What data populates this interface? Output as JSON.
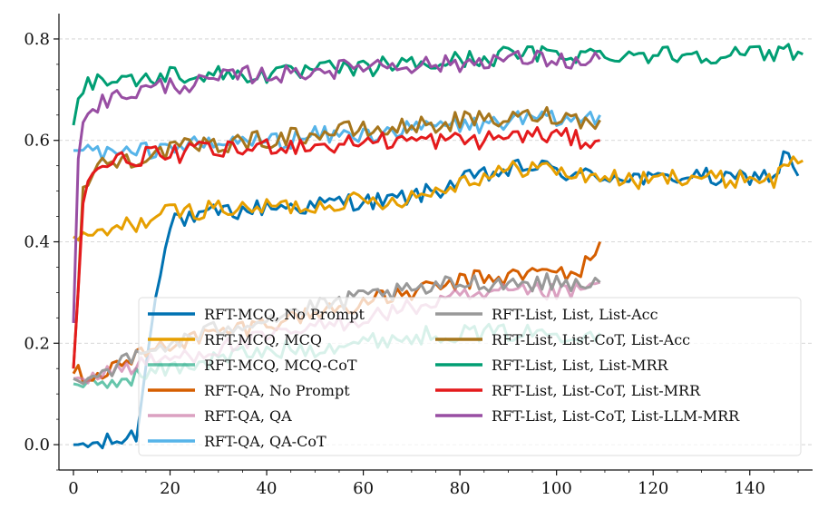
{
  "chart_data": {
    "type": "line",
    "title": "",
    "xlabel": "",
    "ylabel": "",
    "xlim": [
      -3,
      153
    ],
    "ylim": [
      -0.05,
      0.85
    ],
    "xticks": [
      0,
      20,
      40,
      60,
      80,
      100,
      120,
      140
    ],
    "yticks": [
      0.0,
      0.2,
      0.4,
      0.6,
      0.8
    ],
    "xtick_labels": [
      "0",
      "20",
      "40",
      "60",
      "80",
      "100",
      "120",
      "140"
    ],
    "ytick_labels": [
      "0.0",
      "0.2",
      "0.4",
      "0.6",
      "0.8"
    ],
    "grid": "horizontal dashed",
    "legend_position": "bottom-center",
    "series": [
      {
        "name": "RFT-MCQ, No Prompt",
        "color": "#0072B2",
        "opacity": 1.0,
        "points": [
          [
            0,
            0.0
          ],
          [
            5,
            0.0
          ],
          [
            10,
            0.01
          ],
          [
            13,
            0.02
          ],
          [
            15,
            0.15
          ],
          [
            17,
            0.3
          ],
          [
            19,
            0.4
          ],
          [
            21,
            0.45
          ],
          [
            25,
            0.44
          ],
          [
            30,
            0.46
          ],
          [
            35,
            0.46
          ],
          [
            40,
            0.47
          ],
          [
            45,
            0.47
          ],
          [
            50,
            0.47
          ],
          [
            55,
            0.48
          ],
          [
            60,
            0.48
          ],
          [
            65,
            0.48
          ],
          [
            70,
            0.49
          ],
          [
            75,
            0.5
          ],
          [
            80,
            0.52
          ],
          [
            85,
            0.53
          ],
          [
            90,
            0.54
          ],
          [
            95,
            0.55
          ],
          [
            100,
            0.54
          ],
          [
            105,
            0.53
          ],
          [
            110,
            0.53
          ],
          [
            115,
            0.53
          ],
          [
            120,
            0.52
          ],
          [
            125,
            0.53
          ],
          [
            130,
            0.53
          ],
          [
            135,
            0.52
          ],
          [
            140,
            0.53
          ],
          [
            145,
            0.53
          ],
          [
            148,
            0.58
          ],
          [
            150,
            0.53
          ]
        ]
      },
      {
        "name": "RFT-MCQ, MCQ",
        "color": "#E69F00",
        "opacity": 1.0,
        "points": [
          [
            0,
            0.41
          ],
          [
            5,
            0.41
          ],
          [
            10,
            0.43
          ],
          [
            15,
            0.44
          ],
          [
            20,
            0.46
          ],
          [
            25,
            0.46
          ],
          [
            30,
            0.47
          ],
          [
            35,
            0.46
          ],
          [
            40,
            0.47
          ],
          [
            45,
            0.47
          ],
          [
            50,
            0.47
          ],
          [
            55,
            0.48
          ],
          [
            60,
            0.48
          ],
          [
            65,
            0.48
          ],
          [
            70,
            0.49
          ],
          [
            75,
            0.5
          ],
          [
            80,
            0.52
          ],
          [
            85,
            0.53
          ],
          [
            90,
            0.54
          ],
          [
            95,
            0.55
          ],
          [
            100,
            0.54
          ],
          [
            105,
            0.53
          ],
          [
            110,
            0.53
          ],
          [
            115,
            0.52
          ],
          [
            120,
            0.52
          ],
          [
            125,
            0.53
          ],
          [
            130,
            0.53
          ],
          [
            135,
            0.52
          ],
          [
            140,
            0.53
          ],
          [
            145,
            0.52
          ],
          [
            148,
            0.56
          ],
          [
            151,
            0.56
          ]
        ]
      },
      {
        "name": "RFT-MCQ, MCQ-CoT",
        "color": "#009E73",
        "opacity": 0.6,
        "points": [
          [
            0,
            0.12
          ],
          [
            5,
            0.11
          ],
          [
            10,
            0.13
          ],
          [
            15,
            0.14
          ],
          [
            20,
            0.15
          ],
          [
            25,
            0.16
          ],
          [
            30,
            0.17
          ],
          [
            35,
            0.18
          ],
          [
            40,
            0.18
          ],
          [
            45,
            0.19
          ],
          [
            50,
            0.19
          ],
          [
            55,
            0.2
          ],
          [
            60,
            0.2
          ],
          [
            65,
            0.21
          ],
          [
            70,
            0.21
          ],
          [
            75,
            0.22
          ],
          [
            80,
            0.22
          ],
          [
            85,
            0.22
          ],
          [
            90,
            0.22
          ],
          [
            95,
            0.22
          ],
          [
            100,
            0.22
          ],
          [
            105,
            0.22
          ],
          [
            109,
            0.22
          ]
        ]
      },
      {
        "name": "RFT-QA, No Prompt",
        "color": "#D55E00",
        "opacity": 1.0,
        "points": [
          [
            0,
            0.14
          ],
          [
            5,
            0.14
          ],
          [
            10,
            0.16
          ],
          [
            15,
            0.18
          ],
          [
            20,
            0.2
          ],
          [
            25,
            0.21
          ],
          [
            30,
            0.22
          ],
          [
            35,
            0.23
          ],
          [
            40,
            0.24
          ],
          [
            45,
            0.25
          ],
          [
            50,
            0.26
          ],
          [
            55,
            0.27
          ],
          [
            60,
            0.28
          ],
          [
            65,
            0.29
          ],
          [
            70,
            0.3
          ],
          [
            75,
            0.31
          ],
          [
            80,
            0.32
          ],
          [
            85,
            0.33
          ],
          [
            90,
            0.33
          ],
          [
            95,
            0.34
          ],
          [
            100,
            0.34
          ],
          [
            105,
            0.34
          ],
          [
            109,
            0.4
          ]
        ]
      },
      {
        "name": "RFT-QA, QA",
        "color": "#CC79A7",
        "opacity": 0.7,
        "points": [
          [
            0,
            0.13
          ],
          [
            5,
            0.14
          ],
          [
            10,
            0.15
          ],
          [
            15,
            0.16
          ],
          [
            20,
            0.17
          ],
          [
            25,
            0.18
          ],
          [
            30,
            0.19
          ],
          [
            35,
            0.2
          ],
          [
            40,
            0.21
          ],
          [
            45,
            0.22
          ],
          [
            50,
            0.23
          ],
          [
            55,
            0.24
          ],
          [
            60,
            0.25
          ],
          [
            65,
            0.26
          ],
          [
            70,
            0.27
          ],
          [
            75,
            0.28
          ],
          [
            80,
            0.29
          ],
          [
            85,
            0.29
          ],
          [
            90,
            0.3
          ],
          [
            95,
            0.3
          ],
          [
            100,
            0.3
          ],
          [
            105,
            0.3
          ],
          [
            109,
            0.32
          ]
        ]
      },
      {
        "name": "RFT-QA, QA-CoT",
        "color": "#56B4E9",
        "opacity": 1.0,
        "points": [
          [
            0,
            0.58
          ],
          [
            5,
            0.58
          ],
          [
            10,
            0.57
          ],
          [
            15,
            0.58
          ],
          [
            20,
            0.59
          ],
          [
            25,
            0.59
          ],
          [
            30,
            0.59
          ],
          [
            35,
            0.6
          ],
          [
            40,
            0.6
          ],
          [
            45,
            0.6
          ],
          [
            50,
            0.61
          ],
          [
            55,
            0.61
          ],
          [
            60,
            0.61
          ],
          [
            65,
            0.62
          ],
          [
            70,
            0.62
          ],
          [
            75,
            0.63
          ],
          [
            80,
            0.63
          ],
          [
            85,
            0.63
          ],
          [
            90,
            0.64
          ],
          [
            95,
            0.64
          ],
          [
            100,
            0.64
          ],
          [
            105,
            0.64
          ],
          [
            109,
            0.65
          ]
        ]
      },
      {
        "name": "RFT-List, List, List-Acc",
        "color": "#999999",
        "opacity": 1.0,
        "points": [
          [
            0,
            0.13
          ],
          [
            5,
            0.14
          ],
          [
            10,
            0.16
          ],
          [
            15,
            0.18
          ],
          [
            20,
            0.2
          ],
          [
            25,
            0.21
          ],
          [
            30,
            0.23
          ],
          [
            35,
            0.24
          ],
          [
            40,
            0.25
          ],
          [
            45,
            0.26
          ],
          [
            50,
            0.27
          ],
          [
            55,
            0.28
          ],
          [
            60,
            0.29
          ],
          [
            65,
            0.3
          ],
          [
            70,
            0.3
          ],
          [
            75,
            0.31
          ],
          [
            80,
            0.32
          ],
          [
            85,
            0.32
          ],
          [
            90,
            0.32
          ],
          [
            95,
            0.32
          ],
          [
            100,
            0.32
          ],
          [
            105,
            0.32
          ],
          [
            109,
            0.32
          ]
        ]
      },
      {
        "name": "RFT-List, List-CoT, List-Acc",
        "color": "#A6761D",
        "opacity": 1.0,
        "points": [
          [
            0,
            0.15
          ],
          [
            2,
            0.5
          ],
          [
            5,
            0.55
          ],
          [
            10,
            0.56
          ],
          [
            15,
            0.57
          ],
          [
            20,
            0.58
          ],
          [
            25,
            0.59
          ],
          [
            30,
            0.59
          ],
          [
            35,
            0.6
          ],
          [
            40,
            0.6
          ],
          [
            45,
            0.61
          ],
          [
            50,
            0.61
          ],
          [
            55,
            0.62
          ],
          [
            60,
            0.62
          ],
          [
            65,
            0.62
          ],
          [
            70,
            0.63
          ],
          [
            75,
            0.63
          ],
          [
            80,
            0.64
          ],
          [
            85,
            0.64
          ],
          [
            90,
            0.64
          ],
          [
            95,
            0.65
          ],
          [
            100,
            0.65
          ],
          [
            105,
            0.64
          ],
          [
            109,
            0.64
          ]
        ]
      },
      {
        "name": "RFT-List, List, List-MRR",
        "color": "#009E73",
        "opacity": 1.0,
        "points": [
          [
            0,
            0.63
          ],
          [
            1,
            0.7
          ],
          [
            3,
            0.71
          ],
          [
            5,
            0.72
          ],
          [
            10,
            0.72
          ],
          [
            15,
            0.72
          ],
          [
            20,
            0.73
          ],
          [
            25,
            0.73
          ],
          [
            30,
            0.73
          ],
          [
            35,
            0.73
          ],
          [
            40,
            0.73
          ],
          [
            45,
            0.73
          ],
          [
            50,
            0.74
          ],
          [
            55,
            0.74
          ],
          [
            60,
            0.74
          ],
          [
            65,
            0.75
          ],
          [
            70,
            0.75
          ],
          [
            75,
            0.75
          ],
          [
            80,
            0.76
          ],
          [
            85,
            0.76
          ],
          [
            90,
            0.77
          ],
          [
            95,
            0.77
          ],
          [
            100,
            0.77
          ],
          [
            105,
            0.77
          ],
          [
            110,
            0.77
          ],
          [
            115,
            0.77
          ],
          [
            120,
            0.77
          ],
          [
            125,
            0.77
          ],
          [
            130,
            0.77
          ],
          [
            135,
            0.77
          ],
          [
            140,
            0.77
          ],
          [
            145,
            0.77
          ],
          [
            148,
            0.78
          ],
          [
            151,
            0.77
          ]
        ]
      },
      {
        "name": "RFT-List, List-CoT, List-MRR",
        "color": "#E41A1C",
        "opacity": 1.0,
        "points": [
          [
            0,
            0.15
          ],
          [
            2,
            0.49
          ],
          [
            5,
            0.55
          ],
          [
            10,
            0.56
          ],
          [
            15,
            0.57
          ],
          [
            20,
            0.57
          ],
          [
            25,
            0.58
          ],
          [
            30,
            0.58
          ],
          [
            35,
            0.58
          ],
          [
            40,
            0.59
          ],
          [
            45,
            0.59
          ],
          [
            50,
            0.59
          ],
          [
            55,
            0.59
          ],
          [
            60,
            0.6
          ],
          [
            65,
            0.6
          ],
          [
            70,
            0.6
          ],
          [
            75,
            0.6
          ],
          [
            80,
            0.6
          ],
          [
            85,
            0.6
          ],
          [
            90,
            0.61
          ],
          [
            95,
            0.61
          ],
          [
            100,
            0.61
          ],
          [
            105,
            0.6
          ],
          [
            109,
            0.6
          ]
        ]
      },
      {
        "name": "RFT-List, List-CoT, List-LLM-MRR",
        "color": "#984EA3",
        "opacity": 1.0,
        "points": [
          [
            0,
            0.24
          ],
          [
            1,
            0.55
          ],
          [
            2,
            0.63
          ],
          [
            3,
            0.67
          ],
          [
            5,
            0.67
          ],
          [
            10,
            0.69
          ],
          [
            15,
            0.7
          ],
          [
            20,
            0.71
          ],
          [
            25,
            0.71
          ],
          [
            30,
            0.72
          ],
          [
            35,
            0.73
          ],
          [
            40,
            0.73
          ],
          [
            45,
            0.73
          ],
          [
            50,
            0.74
          ],
          [
            55,
            0.74
          ],
          [
            60,
            0.75
          ],
          [
            65,
            0.75
          ],
          [
            70,
            0.75
          ],
          [
            75,
            0.75
          ],
          [
            80,
            0.75
          ],
          [
            85,
            0.76
          ],
          [
            90,
            0.76
          ],
          [
            95,
            0.76
          ],
          [
            100,
            0.76
          ],
          [
            105,
            0.75
          ],
          [
            109,
            0.76
          ]
        ]
      }
    ]
  }
}
